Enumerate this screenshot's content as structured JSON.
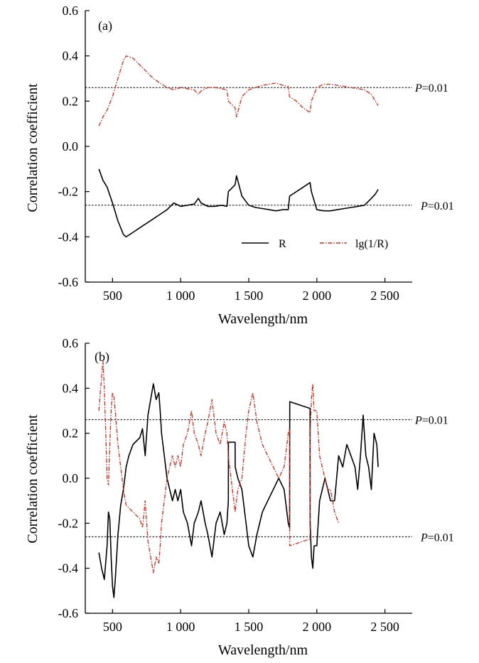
{
  "chart_data": [
    {
      "type": "line",
      "panel_label": "(a)",
      "xlabel": "Wavelength/nm",
      "ylabel": "Correlation coefficient",
      "xlim": [
        300,
        2700
      ],
      "ylim": [
        -0.6,
        0.6
      ],
      "xticks": [
        500,
        1000,
        1500,
        2000,
        2500
      ],
      "xtick_labels": [
        "500",
        "1 000",
        "1 500",
        "2 000",
        "2 500"
      ],
      "yticks": [
        -0.6,
        -0.4,
        -0.2,
        0.0,
        0.2,
        0.4,
        0.6
      ],
      "ytick_labels": [
        "-0.6",
        "-0.4",
        "-0.2",
        "0.0",
        "0.2",
        "0.4",
        "0.6"
      ],
      "grid": false,
      "legend_position": "lower-right",
      "thresholds": [
        {
          "y": 0.26,
          "label_p": "P",
          "label_rest": "=0.01"
        },
        {
          "y": -0.26,
          "label_p": "P",
          "label_rest": "=0.01"
        }
      ],
      "series": [
        {
          "name": "R",
          "color": "#000000",
          "style": "solid",
          "x": [
            400,
            430,
            460,
            500,
            540,
            580,
            600,
            650,
            700,
            750,
            800,
            850,
            900,
            950,
            1000,
            1050,
            1100,
            1130,
            1150,
            1200,
            1250,
            1300,
            1340,
            1350,
            1400,
            1410,
            1450,
            1500,
            1550,
            1600,
            1650,
            1700,
            1750,
            1790,
            1800,
            1850,
            1900,
            1950,
            1960,
            2000,
            2050,
            2100,
            2150,
            2200,
            2250,
            2300,
            2350,
            2400,
            2430,
            2450
          ],
          "values": [
            -0.1,
            -0.15,
            -0.18,
            -0.25,
            -0.33,
            -0.39,
            -0.4,
            -0.38,
            -0.36,
            -0.34,
            -0.32,
            -0.3,
            -0.28,
            -0.25,
            -0.265,
            -0.26,
            -0.255,
            -0.23,
            -0.25,
            -0.265,
            -0.265,
            -0.26,
            -0.265,
            -0.2,
            -0.17,
            -0.13,
            -0.22,
            -0.26,
            -0.27,
            -0.275,
            -0.28,
            -0.285,
            -0.28,
            -0.28,
            -0.22,
            -0.2,
            -0.18,
            -0.16,
            -0.2,
            -0.28,
            -0.285,
            -0.285,
            -0.28,
            -0.275,
            -0.27,
            -0.265,
            -0.26,
            -0.23,
            -0.21,
            -0.19
          ]
        },
        {
          "name": "lg(1/R)",
          "color": "#d42a1e",
          "style": "dash-dot",
          "x": [
            400,
            430,
            460,
            500,
            540,
            580,
            600,
            650,
            700,
            750,
            800,
            850,
            900,
            950,
            1000,
            1050,
            1100,
            1130,
            1150,
            1200,
            1250,
            1300,
            1340,
            1350,
            1400,
            1410,
            1450,
            1500,
            1550,
            1600,
            1650,
            1700,
            1750,
            1790,
            1800,
            1850,
            1900,
            1950,
            1960,
            2000,
            2050,
            2100,
            2150,
            2200,
            2250,
            2300,
            2350,
            2400,
            2430,
            2450
          ],
          "values": [
            0.09,
            0.13,
            0.16,
            0.22,
            0.3,
            0.38,
            0.4,
            0.39,
            0.36,
            0.33,
            0.3,
            0.28,
            0.26,
            0.25,
            0.26,
            0.255,
            0.25,
            0.23,
            0.245,
            0.26,
            0.26,
            0.255,
            0.25,
            0.2,
            0.17,
            0.13,
            0.22,
            0.25,
            0.26,
            0.27,
            0.275,
            0.28,
            0.27,
            0.265,
            0.22,
            0.2,
            0.17,
            0.15,
            0.2,
            0.26,
            0.275,
            0.275,
            0.27,
            0.265,
            0.26,
            0.255,
            0.25,
            0.23,
            0.2,
            0.18
          ]
        }
      ]
    },
    {
      "type": "line",
      "panel_label": "(b)",
      "xlabel": "Wavelength/nm",
      "ylabel": "Correlation coefficient",
      "xlim": [
        300,
        2700
      ],
      "ylim": [
        -0.6,
        0.6
      ],
      "xticks": [
        500,
        1000,
        1500,
        2000,
        2500
      ],
      "xtick_labels": [
        "500",
        "1 000",
        "1 500",
        "2 000",
        "2 500"
      ],
      "yticks": [
        -0.6,
        -0.4,
        -0.2,
        0.0,
        0.2,
        0.4,
        0.6
      ],
      "ytick_labels": [
        "-0.6",
        "-0.4",
        "-0.2",
        "0.0",
        "0.2",
        "0.4",
        "0.6"
      ],
      "grid": false,
      "thresholds": [
        {
          "y": 0.26,
          "label_p": "P",
          "label_rest": "=0.01"
        },
        {
          "y": -0.26,
          "label_p": "P",
          "label_rest": "=0.01"
        }
      ],
      "series": [
        {
          "color": "#000000",
          "style": "solid",
          "x": [
            400,
            420,
            440,
            460,
            470,
            480,
            490,
            500,
            510,
            520,
            540,
            560,
            580,
            600,
            620,
            650,
            700,
            720,
            740,
            760,
            780,
            800,
            820,
            840,
            850,
            860,
            880,
            900,
            920,
            940,
            960,
            980,
            1000,
            1020,
            1050,
            1080,
            1100,
            1130,
            1150,
            1180,
            1200,
            1230,
            1260,
            1290,
            1320,
            1340,
            1350,
            1351,
            1400,
            1401,
            1420,
            1450,
            1480,
            1500,
            1530,
            1560,
            1600,
            1640,
            1680,
            1720,
            1760,
            1790,
            1800,
            1801,
            1950,
            1951,
            1960,
            1970,
            1980,
            2000,
            2020,
            2040,
            2060,
            2080,
            2100,
            2130,
            2160,
            2190,
            2220,
            2250,
            2280,
            2300,
            2320,
            2340,
            2360,
            2380,
            2400,
            2420,
            2440,
            2450
          ],
          "values": [
            -0.33,
            -0.4,
            -0.45,
            -0.3,
            -0.15,
            -0.18,
            -0.35,
            -0.48,
            -0.53,
            -0.45,
            -0.25,
            -0.12,
            -0.05,
            0.05,
            0.1,
            0.15,
            0.18,
            0.22,
            0.1,
            0.28,
            0.35,
            0.42,
            0.35,
            0.38,
            0.3,
            0.2,
            0.1,
            0.0,
            -0.05,
            -0.1,
            -0.05,
            -0.1,
            -0.05,
            -0.15,
            -0.2,
            -0.3,
            -0.2,
            -0.15,
            -0.1,
            -0.2,
            -0.25,
            -0.35,
            -0.2,
            -0.15,
            -0.25,
            -0.2,
            -0.1,
            0.16,
            0.16,
            0.05,
            0.0,
            -0.05,
            -0.2,
            -0.3,
            -0.35,
            -0.25,
            -0.15,
            -0.1,
            -0.05,
            0.0,
            -0.05,
            -0.2,
            -0.22,
            0.34,
            0.31,
            -0.2,
            -0.35,
            -0.4,
            -0.3,
            -0.3,
            -0.1,
            -0.05,
            0.0,
            -0.05,
            -0.1,
            -0.1,
            0.1,
            0.05,
            0.15,
            0.1,
            0.05,
            -0.05,
            0.1,
            0.28,
            0.1,
            0.05,
            -0.05,
            0.2,
            0.15,
            0.05
          ]
        },
        {
          "color": "#d42a1e",
          "style": "dash-dot",
          "x": [
            400,
            410,
            420,
            430,
            440,
            450,
            460,
            470,
            480,
            490,
            500,
            510,
            520,
            540,
            560,
            580,
            600,
            650,
            700,
            720,
            740,
            760,
            780,
            800,
            820,
            840,
            850,
            860,
            880,
            900,
            920,
            940,
            960,
            980,
            1000,
            1020,
            1050,
            1080,
            1100,
            1130,
            1150,
            1180,
            1200,
            1230,
            1260,
            1290,
            1320,
            1340,
            1350,
            1400,
            1420,
            1450,
            1480,
            1500,
            1530,
            1560,
            1600,
            1640,
            1680,
            1720,
            1760,
            1790,
            1800,
            1801,
            1950,
            1951,
            1960,
            1970,
            1980,
            2000,
            2020,
            2040,
            2060,
            2080,
            2100,
            2130,
            2160
          ],
          "values": [
            0.3,
            0.38,
            0.45,
            0.52,
            0.4,
            0.2,
            0.0,
            -0.03,
            0.15,
            0.3,
            0.38,
            0.36,
            0.3,
            0.15,
            0.05,
            -0.05,
            -0.12,
            -0.15,
            -0.18,
            -0.22,
            -0.1,
            -0.28,
            -0.35,
            -0.42,
            -0.35,
            -0.38,
            -0.3,
            -0.2,
            -0.1,
            0.0,
            0.05,
            0.1,
            0.05,
            0.1,
            0.05,
            0.15,
            0.2,
            0.3,
            0.2,
            0.15,
            0.1,
            0.2,
            0.25,
            0.35,
            0.2,
            0.15,
            0.25,
            0.2,
            0.1,
            -0.15,
            -0.05,
            0.0,
            0.2,
            0.3,
            0.38,
            0.25,
            0.15,
            0.1,
            0.05,
            0.0,
            0.05,
            0.2,
            0.22,
            -0.3,
            -0.27,
            0.2,
            0.35,
            0.42,
            0.3,
            0.3,
            0.1,
            0.05,
            0.0,
            -0.05,
            -0.05,
            -0.15,
            -0.2
          ]
        }
      ]
    }
  ]
}
